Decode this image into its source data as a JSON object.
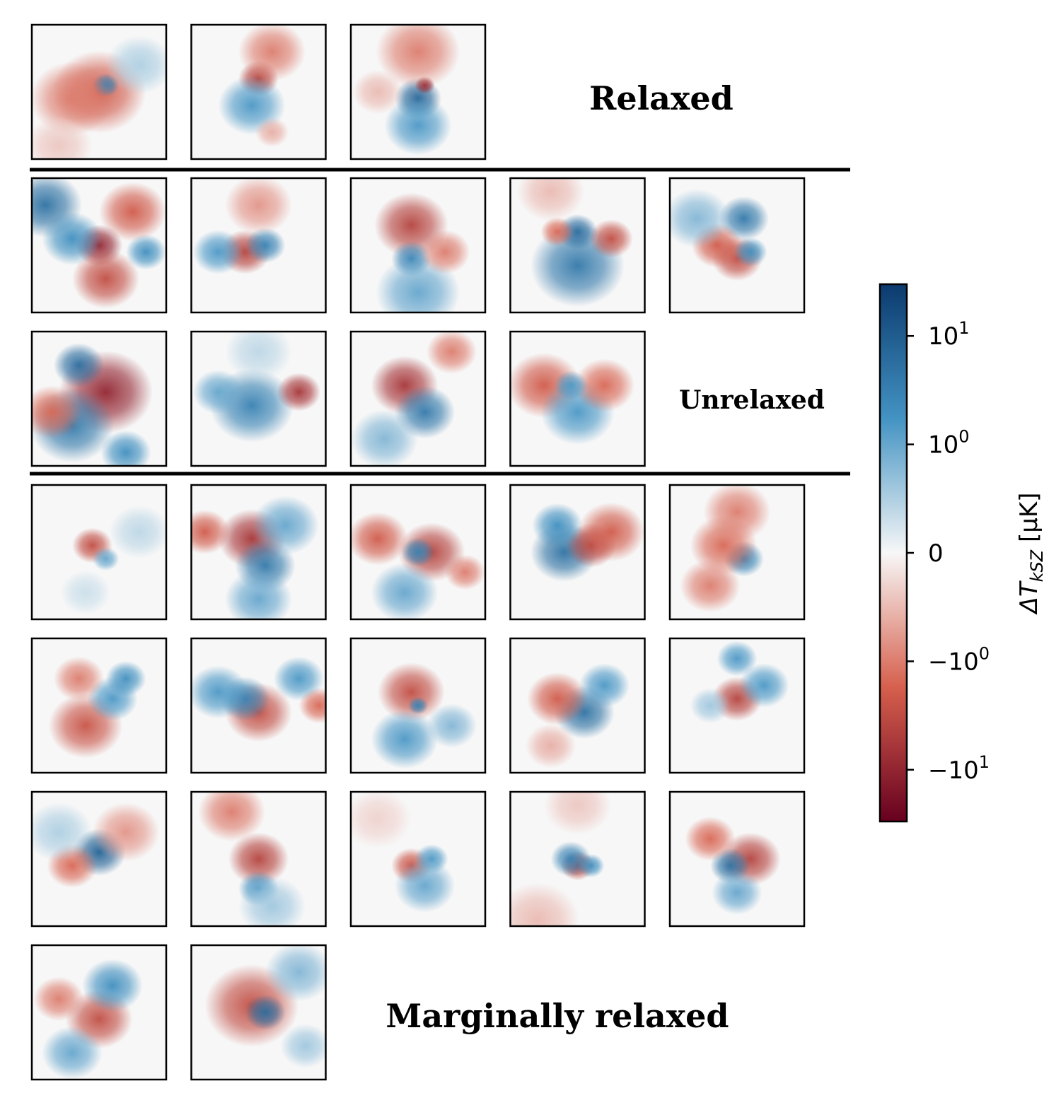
{
  "chart_data": {
    "type": "heatmap",
    "colormap": "RdBu",
    "colors": {
      "positive_max": "#0b3a6e",
      "positive_mid": "#4393c3",
      "zero": "#f7f7f7",
      "negative_mid": "#d6604d",
      "negative_max": "#67001f",
      "frame": "#000000"
    },
    "groups": [
      {
        "label": "Relaxed",
        "rows": [
          3
        ]
      },
      {
        "label": "Unrelaxed",
        "rows": [
          5,
          4
        ]
      },
      {
        "label": "Marginally relaxed",
        "rows": [
          5,
          5,
          5,
          2
        ]
      }
    ],
    "panels": [
      {
        "group": "Relaxed",
        "blobs": [
          {
            "x": 0.5,
            "y": 0.5,
            "r": 0.28,
            "v": -2
          },
          {
            "x": 0.55,
            "y": 0.45,
            "r": 0.08,
            "v": 3
          },
          {
            "x": 0.3,
            "y": 0.55,
            "r": 0.25,
            "v": -1
          },
          {
            "x": 0.8,
            "y": 0.3,
            "r": 0.2,
            "v": 0.5
          },
          {
            "x": 0.2,
            "y": 0.9,
            "r": 0.2,
            "v": -0.4
          }
        ]
      },
      {
        "group": "Relaxed",
        "blobs": [
          {
            "x": 0.5,
            "y": 0.4,
            "r": 0.12,
            "v": -4
          },
          {
            "x": 0.45,
            "y": 0.6,
            "r": 0.2,
            "v": 1.5
          },
          {
            "x": 0.6,
            "y": 0.2,
            "r": 0.2,
            "v": -1
          },
          {
            "x": 0.6,
            "y": 0.8,
            "r": 0.1,
            "v": -0.6
          }
        ]
      },
      {
        "group": "Relaxed",
        "blobs": [
          {
            "x": 0.5,
            "y": 0.55,
            "r": 0.14,
            "v": 8
          },
          {
            "x": 0.55,
            "y": 0.45,
            "r": 0.06,
            "v": -8
          },
          {
            "x": 0.5,
            "y": 0.2,
            "r": 0.25,
            "v": -1
          },
          {
            "x": 0.5,
            "y": 0.75,
            "r": 0.2,
            "v": 1.5
          },
          {
            "x": 0.2,
            "y": 0.5,
            "r": 0.15,
            "v": -0.5
          }
        ]
      },
      {
        "group": "Unrelaxed",
        "blobs": [
          {
            "x": 0.1,
            "y": 0.2,
            "r": 0.22,
            "v": 5
          },
          {
            "x": 0.5,
            "y": 0.5,
            "r": 0.14,
            "v": -10
          },
          {
            "x": 0.55,
            "y": 0.75,
            "r": 0.2,
            "v": -3
          },
          {
            "x": 0.75,
            "y": 0.25,
            "r": 0.2,
            "v": -2
          },
          {
            "x": 0.3,
            "y": 0.45,
            "r": 0.18,
            "v": 2
          },
          {
            "x": 0.85,
            "y": 0.55,
            "r": 0.12,
            "v": 2
          }
        ]
      },
      {
        "group": "Unrelaxed",
        "blobs": [
          {
            "x": 0.4,
            "y": 0.55,
            "r": 0.15,
            "v": -4
          },
          {
            "x": 0.55,
            "y": 0.5,
            "r": 0.12,
            "v": 3
          },
          {
            "x": 0.2,
            "y": 0.55,
            "r": 0.15,
            "v": 1.5
          },
          {
            "x": 0.5,
            "y": 0.2,
            "r": 0.2,
            "v": -0.8
          }
        ]
      },
      {
        "group": "Unrelaxed",
        "blobs": [
          {
            "x": 0.45,
            "y": 0.35,
            "r": 0.22,
            "v": -4
          },
          {
            "x": 0.45,
            "y": 0.6,
            "r": 0.12,
            "v": 3
          },
          {
            "x": 0.5,
            "y": 0.85,
            "r": 0.25,
            "v": 1
          },
          {
            "x": 0.7,
            "y": 0.55,
            "r": 0.15,
            "v": -1
          }
        ]
      },
      {
        "group": "Unrelaxed",
        "blobs": [
          {
            "x": 0.5,
            "y": 0.65,
            "r": 0.28,
            "v": 4
          },
          {
            "x": 0.5,
            "y": 0.4,
            "r": 0.12,
            "v": 6
          },
          {
            "x": 0.75,
            "y": 0.45,
            "r": 0.13,
            "v": -3
          },
          {
            "x": 0.35,
            "y": 0.4,
            "r": 0.1,
            "v": -1.5
          },
          {
            "x": 0.3,
            "y": 0.1,
            "r": 0.2,
            "v": -0.5
          }
        ]
      },
      {
        "group": "Unrelaxed",
        "blobs": [
          {
            "x": 0.55,
            "y": 0.3,
            "r": 0.15,
            "v": 4
          },
          {
            "x": 0.5,
            "y": 0.6,
            "r": 0.15,
            "v": -3
          },
          {
            "x": 0.35,
            "y": 0.5,
            "r": 0.15,
            "v": -2
          },
          {
            "x": 0.6,
            "y": 0.55,
            "r": 0.1,
            "v": 2
          },
          {
            "x": 0.2,
            "y": 0.3,
            "r": 0.2,
            "v": 0.8
          }
        ]
      },
      {
        "group": "Unrelaxed",
        "blobs": [
          {
            "x": 0.55,
            "y": 0.45,
            "r": 0.28,
            "v": -10
          },
          {
            "x": 0.3,
            "y": 0.7,
            "r": 0.25,
            "v": 4
          },
          {
            "x": 0.35,
            "y": 0.25,
            "r": 0.15,
            "v": 6
          },
          {
            "x": 0.15,
            "y": 0.6,
            "r": 0.18,
            "v": -1.5
          },
          {
            "x": 0.7,
            "y": 0.9,
            "r": 0.15,
            "v": 2
          }
        ]
      },
      {
        "group": "Unrelaxed",
        "blobs": [
          {
            "x": 0.45,
            "y": 0.55,
            "r": 0.25,
            "v": 3
          },
          {
            "x": 0.8,
            "y": 0.45,
            "r": 0.13,
            "v": -6
          },
          {
            "x": 0.2,
            "y": 0.45,
            "r": 0.15,
            "v": 1
          },
          {
            "x": 0.5,
            "y": 0.15,
            "r": 0.2,
            "v": 0.4
          }
        ]
      },
      {
        "group": "Unrelaxed",
        "blobs": [
          {
            "x": 0.4,
            "y": 0.4,
            "r": 0.2,
            "v": -6
          },
          {
            "x": 0.55,
            "y": 0.6,
            "r": 0.18,
            "v": 4
          },
          {
            "x": 0.25,
            "y": 0.8,
            "r": 0.2,
            "v": 0.8
          },
          {
            "x": 0.75,
            "y": 0.15,
            "r": 0.15,
            "v": -1
          }
        ]
      },
      {
        "group": "Unrelaxed",
        "blobs": [
          {
            "x": 0.25,
            "y": 0.4,
            "r": 0.22,
            "v": -2
          },
          {
            "x": 0.5,
            "y": 0.6,
            "r": 0.22,
            "v": 1.5
          },
          {
            "x": 0.7,
            "y": 0.4,
            "r": 0.18,
            "v": -1.5
          },
          {
            "x": 0.45,
            "y": 0.4,
            "r": 0.1,
            "v": 1.5
          }
        ]
      },
      {
        "group": "Marginally relaxed",
        "blobs": [
          {
            "x": 0.45,
            "y": 0.45,
            "r": 0.12,
            "v": -3
          },
          {
            "x": 0.55,
            "y": 0.55,
            "r": 0.08,
            "v": 1
          },
          {
            "x": 0.8,
            "y": 0.35,
            "r": 0.18,
            "v": 0.4
          },
          {
            "x": 0.4,
            "y": 0.8,
            "r": 0.15,
            "v": 0.3
          }
        ]
      },
      {
        "group": "Marginally relaxed",
        "blobs": [
          {
            "x": 0.45,
            "y": 0.4,
            "r": 0.2,
            "v": -6
          },
          {
            "x": 0.55,
            "y": 0.6,
            "r": 0.18,
            "v": 4
          },
          {
            "x": 0.1,
            "y": 0.35,
            "r": 0.15,
            "v": -2
          },
          {
            "x": 0.7,
            "y": 0.3,
            "r": 0.2,
            "v": 1
          },
          {
            "x": 0.5,
            "y": 0.85,
            "r": 0.2,
            "v": 1
          }
        ]
      },
      {
        "group": "Marginally relaxed",
        "blobs": [
          {
            "x": 0.6,
            "y": 0.5,
            "r": 0.2,
            "v": -4
          },
          {
            "x": 0.5,
            "y": 0.5,
            "r": 0.1,
            "v": 3
          },
          {
            "x": 0.2,
            "y": 0.4,
            "r": 0.18,
            "v": -2
          },
          {
            "x": 0.4,
            "y": 0.8,
            "r": 0.2,
            "v": 1
          },
          {
            "x": 0.85,
            "y": 0.65,
            "r": 0.12,
            "v": -1
          }
        ]
      },
      {
        "group": "Marginally relaxed",
        "blobs": [
          {
            "x": 0.4,
            "y": 0.5,
            "r": 0.2,
            "v": 5
          },
          {
            "x": 0.6,
            "y": 0.45,
            "r": 0.15,
            "v": -4
          },
          {
            "x": 0.75,
            "y": 0.35,
            "r": 0.2,
            "v": -2
          },
          {
            "x": 0.35,
            "y": 0.3,
            "r": 0.15,
            "v": 2
          }
        ]
      },
      {
        "group": "Marginally relaxed",
        "blobs": [
          {
            "x": 0.55,
            "y": 0.55,
            "r": 0.12,
            "v": 3
          },
          {
            "x": 0.4,
            "y": 0.45,
            "r": 0.2,
            "v": -1.5
          },
          {
            "x": 0.5,
            "y": 0.2,
            "r": 0.2,
            "v": -1
          },
          {
            "x": 0.3,
            "y": 0.75,
            "r": 0.18,
            "v": -1
          }
        ]
      },
      {
        "group": "Marginally relaxed",
        "blobs": [
          {
            "x": 0.4,
            "y": 0.65,
            "r": 0.22,
            "v": -2.5
          },
          {
            "x": 0.6,
            "y": 0.45,
            "r": 0.15,
            "v": 1.5
          },
          {
            "x": 0.7,
            "y": 0.3,
            "r": 0.12,
            "v": 2
          },
          {
            "x": 0.35,
            "y": 0.3,
            "r": 0.15,
            "v": -1
          }
        ]
      },
      {
        "group": "Marginally relaxed",
        "blobs": [
          {
            "x": 0.5,
            "y": 0.55,
            "r": 0.2,
            "v": -3
          },
          {
            "x": 0.4,
            "y": 0.45,
            "r": 0.15,
            "v": 3
          },
          {
            "x": 0.2,
            "y": 0.4,
            "r": 0.18,
            "v": 1.5
          },
          {
            "x": 0.8,
            "y": 0.3,
            "r": 0.15,
            "v": 1.5
          },
          {
            "x": 0.95,
            "y": 0.5,
            "r": 0.12,
            "v": -1.5
          }
        ]
      },
      {
        "group": "Marginally relaxed",
        "blobs": [
          {
            "x": 0.45,
            "y": 0.4,
            "r": 0.2,
            "v": -3
          },
          {
            "x": 0.5,
            "y": 0.5,
            "r": 0.06,
            "v": 3
          },
          {
            "x": 0.4,
            "y": 0.75,
            "r": 0.2,
            "v": 1.5
          },
          {
            "x": 0.75,
            "y": 0.65,
            "r": 0.15,
            "v": 0.8
          }
        ]
      },
      {
        "group": "Marginally relaxed",
        "blobs": [
          {
            "x": 0.55,
            "y": 0.55,
            "r": 0.18,
            "v": 5
          },
          {
            "x": 0.35,
            "y": 0.45,
            "r": 0.18,
            "v": -2
          },
          {
            "x": 0.7,
            "y": 0.35,
            "r": 0.15,
            "v": 1.5
          },
          {
            "x": 0.3,
            "y": 0.8,
            "r": 0.15,
            "v": -0.6
          }
        ]
      },
      {
        "group": "Marginally relaxed",
        "blobs": [
          {
            "x": 0.5,
            "y": 0.45,
            "r": 0.15,
            "v": -4
          },
          {
            "x": 0.7,
            "y": 0.35,
            "r": 0.15,
            "v": 1.5
          },
          {
            "x": 0.5,
            "y": 0.15,
            "r": 0.12,
            "v": 1.5
          },
          {
            "x": 0.3,
            "y": 0.5,
            "r": 0.12,
            "v": 0.6
          }
        ]
      },
      {
        "group": "Marginally relaxed",
        "blobs": [
          {
            "x": 0.5,
            "y": 0.45,
            "r": 0.16,
            "v": 8
          },
          {
            "x": 0.3,
            "y": 0.55,
            "r": 0.15,
            "v": -1.5
          },
          {
            "x": 0.7,
            "y": 0.3,
            "r": 0.2,
            "v": -0.8
          },
          {
            "x": 0.2,
            "y": 0.3,
            "r": 0.2,
            "v": 0.5
          }
        ]
      },
      {
        "group": "Marginally relaxed",
        "blobs": [
          {
            "x": 0.5,
            "y": 0.5,
            "r": 0.18,
            "v": -4
          },
          {
            "x": 0.5,
            "y": 0.72,
            "r": 0.12,
            "v": 2
          },
          {
            "x": 0.3,
            "y": 0.15,
            "r": 0.2,
            "v": -1
          },
          {
            "x": 0.6,
            "y": 0.85,
            "r": 0.2,
            "v": 0.6
          }
        ]
      },
      {
        "group": "Marginally relaxed",
        "blobs": [
          {
            "x": 0.45,
            "y": 0.55,
            "r": 0.12,
            "v": -2.5
          },
          {
            "x": 0.6,
            "y": 0.5,
            "r": 0.1,
            "v": 1.5
          },
          {
            "x": 0.55,
            "y": 0.7,
            "r": 0.18,
            "v": 1
          },
          {
            "x": 0.2,
            "y": 0.2,
            "r": 0.2,
            "v": -0.3
          }
        ]
      },
      {
        "group": "Marginally relaxed",
        "blobs": [
          {
            "x": 0.5,
            "y": 0.55,
            "r": 0.1,
            "v": -4
          },
          {
            "x": 0.45,
            "y": 0.5,
            "r": 0.12,
            "v": 3
          },
          {
            "x": 0.6,
            "y": 0.55,
            "r": 0.08,
            "v": 2
          },
          {
            "x": 0.2,
            "y": 0.95,
            "r": 0.25,
            "v": -0.5
          },
          {
            "x": 0.5,
            "y": 0.1,
            "r": 0.2,
            "v": -0.4
          }
        ]
      },
      {
        "group": "Marginally relaxed",
        "blobs": [
          {
            "x": 0.6,
            "y": 0.5,
            "r": 0.18,
            "v": -4
          },
          {
            "x": 0.45,
            "y": 0.55,
            "r": 0.12,
            "v": 5
          },
          {
            "x": 0.3,
            "y": 0.35,
            "r": 0.15,
            "v": -1.5
          },
          {
            "x": 0.5,
            "y": 0.75,
            "r": 0.15,
            "v": 1
          }
        ]
      },
      {
        "group": "Marginally relaxed",
        "blobs": [
          {
            "x": 0.5,
            "y": 0.55,
            "r": 0.2,
            "v": -3
          },
          {
            "x": 0.6,
            "y": 0.3,
            "r": 0.18,
            "v": 2
          },
          {
            "x": 0.2,
            "y": 0.4,
            "r": 0.15,
            "v": -1
          },
          {
            "x": 0.3,
            "y": 0.8,
            "r": 0.18,
            "v": 1
          }
        ]
      },
      {
        "group": "Marginally relaxed",
        "blobs": [
          {
            "x": 0.45,
            "y": 0.45,
            "r": 0.28,
            "v": -3
          },
          {
            "x": 0.55,
            "y": 0.5,
            "r": 0.12,
            "v": 6
          },
          {
            "x": 0.8,
            "y": 0.2,
            "r": 0.2,
            "v": 0.8
          },
          {
            "x": 0.85,
            "y": 0.75,
            "r": 0.15,
            "v": 0.6
          }
        ]
      }
    ],
    "colorbar": {
      "label": "ΔT",
      "label_sub": "kSZ",
      "label_unit": " [μK]",
      "scale": "symlog",
      "linthresh": 1,
      "range": [
        -30,
        30
      ],
      "ticks": [
        {
          "value": 10,
          "base": "10",
          "exp": "1"
        },
        {
          "value": 1,
          "base": "10",
          "exp": "0"
        },
        {
          "value": 0,
          "base": "0",
          "exp": ""
        },
        {
          "value": -1,
          "base": "−10",
          "exp": "0"
        },
        {
          "value": -10,
          "base": "−10",
          "exp": "1"
        }
      ]
    },
    "separators": 2
  }
}
